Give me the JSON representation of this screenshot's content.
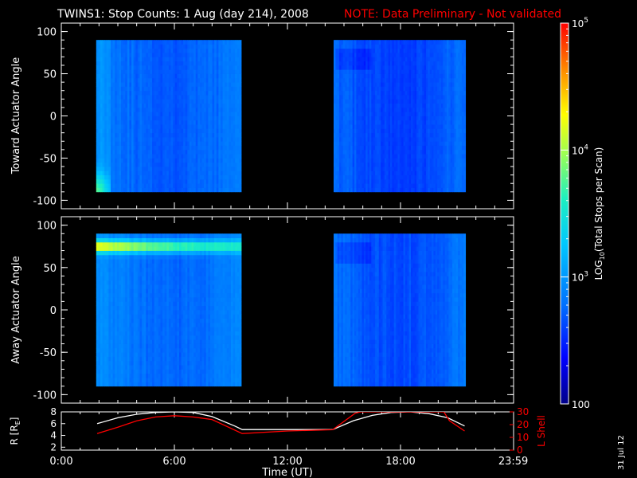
{
  "header": {
    "title": "TWINS1: Stop Counts:  1 Aug (day 214), 2008",
    "note": "NOTE: Data Preliminary - Not validated"
  },
  "footer": {
    "date_stamp": "31 Jul 12"
  },
  "colors": {
    "background": "#000000",
    "foreground": "#ffffff",
    "note": "#ff0000",
    "l_shell": "#ff0000",
    "radius": "#ffffff"
  },
  "chart_data": [
    {
      "type": "heatmap",
      "panel": "toward",
      "ylabel": "Toward Actuator Angle",
      "xlim": [
        0,
        24
      ],
      "ylim": [
        -110,
        110
      ],
      "yticks": [
        100,
        50,
        0,
        -50,
        -100
      ],
      "data_blocks": [
        {
          "x_start": 1.85,
          "x_end": 9.55,
          "y_start": -90,
          "y_end": 90,
          "base_log10": 2.9,
          "feature": "enhanced counts near -90 deg early (up to ~2.3 UT)"
        },
        {
          "x_start": 14.45,
          "x_end": 21.45,
          "y_start": -90,
          "y_end": 90,
          "base_log10": 2.75
        }
      ]
    },
    {
      "type": "heatmap",
      "panel": "away",
      "ylabel": "Away Actuator Angle",
      "xlim": [
        0,
        24
      ],
      "ylim": [
        -110,
        110
      ],
      "yticks": [
        100,
        50,
        0,
        -50,
        -100
      ],
      "data_blocks": [
        {
          "x_start": 1.85,
          "x_end": 9.55,
          "y_start": -90,
          "y_end": 90,
          "base_log10": 2.95,
          "feature": "high-count band near +75 deg from ~1.9 to ~9.5 UT, peak ~10^4.2"
        },
        {
          "x_start": 14.45,
          "x_end": 21.45,
          "y_start": -90,
          "y_end": 90,
          "base_log10": 2.8
        }
      ]
    },
    {
      "type": "colorbar",
      "label": "LOG10(Total Stops per Scan)",
      "label_parts": {
        "prefix": "LOG",
        "sub": "10",
        "suffix": "(Total Stops per Scan)"
      },
      "scale": "log",
      "range": [
        100,
        100000
      ],
      "ticks": [
        {
          "value": 100000,
          "base": "10",
          "exp": "5"
        },
        {
          "value": 10000,
          "base": "10",
          "exp": "4"
        },
        {
          "value": 1000,
          "base": "10",
          "exp": "3"
        },
        {
          "value": 100,
          "label": "100"
        }
      ]
    },
    {
      "type": "line",
      "panel": "orbit",
      "xlabel": "Time (UT)",
      "xlim": [
        0,
        24
      ],
      "x_tick_labels": [
        {
          "x": 0,
          "label": "0:00"
        },
        {
          "x": 6,
          "label": "6:00"
        },
        {
          "x": 12,
          "label": "12:00"
        },
        {
          "x": 18,
          "label": "18:00"
        },
        {
          "x": 23.983,
          "label": "23:59"
        }
      ],
      "ylabel_left": {
        "prefix": "R [R",
        "sub": "E",
        "suffix": "]"
      },
      "ylim_left": [
        1.5,
        8
      ],
      "yticks_left": [
        2,
        4,
        6,
        8
      ],
      "ylabel_right": "L Shell",
      "ylim_right": [
        0,
        30
      ],
      "yticks_right": [
        0,
        10,
        20,
        30
      ],
      "series": [
        {
          "axis": "left",
          "x": [
            1.9,
            3.0,
            4.0,
            5.0,
            6.0,
            7.0,
            8.0,
            9.2,
            9.6,
            14.4,
            15.5,
            16.5,
            17.5,
            18.5,
            19.5,
            20.5,
            21.4
          ],
          "y": [
            6.0,
            7.0,
            7.6,
            7.9,
            8.0,
            7.9,
            7.2,
            5.6,
            5.0,
            5.0,
            6.5,
            7.4,
            7.9,
            8.0,
            7.7,
            7.0,
            5.6
          ]
        },
        {
          "axis": "right",
          "x": [
            1.9,
            3.0,
            4.0,
            5.0,
            6.0,
            7.0,
            8.0,
            9.6,
            12.0,
            14.4,
            15.6,
            15.9,
            20.3,
            20.6,
            21.4
          ],
          "y": [
            13,
            18,
            23,
            26,
            27,
            26,
            24,
            13,
            15,
            16,
            29,
            30,
            30,
            23,
            15
          ]
        }
      ]
    }
  ]
}
